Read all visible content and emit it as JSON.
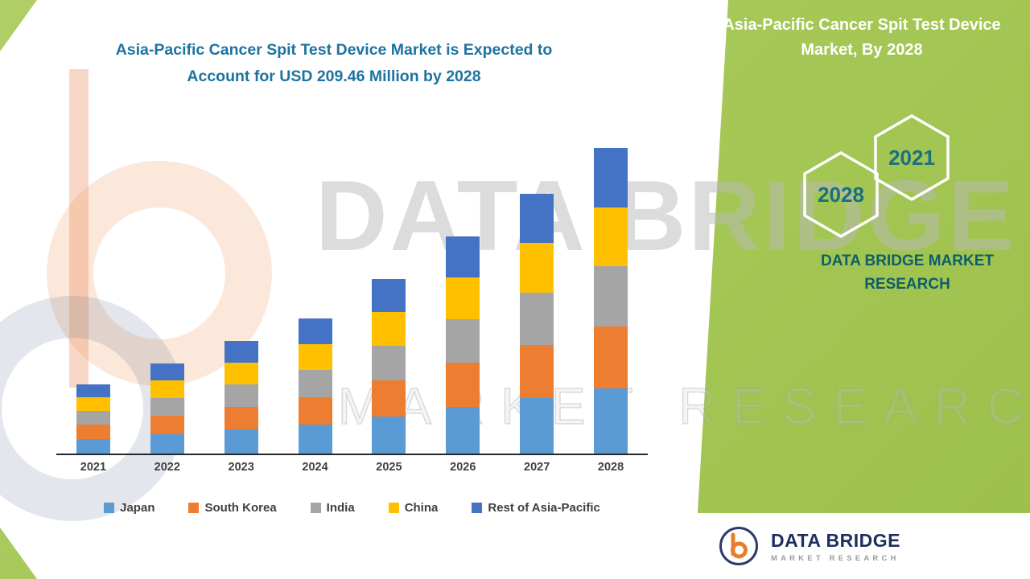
{
  "header": {
    "line1": "Asia-Pacific Cancer Spit Test Device Market is Expected to",
    "line2": "Account for USD 209.46 Million by 2028"
  },
  "right_panel": {
    "title_line1": "Asia-Pacific Cancer Spit Test Device",
    "title_line2": "Market, By 2028",
    "hexagon_back_year": "2021",
    "hexagon_front_year": "2028",
    "brand_line1": "DATA BRIDGE MARKET",
    "brand_line2": "RESEARCH"
  },
  "watermark": {
    "line1": "DATA BRIDGE",
    "line2": "MARKET RESEARCH"
  },
  "logo": {
    "name": "DATA BRIDGE",
    "sub": "MARKET RESEARCH"
  },
  "colors": {
    "green_background": "#a4c654",
    "title_blue": "#1e73a0",
    "brand_teal": "#0d5f68",
    "logo_navy": "#1e2f5c",
    "logo_orange": "#e87e2d"
  },
  "chart_data": {
    "type": "bar",
    "stacked": true,
    "title": "Asia-Pacific Cancer Spit Test Device Market is Expected to Account for USD 209.46 Million by 2028",
    "unit": "USD Million",
    "legend_position": "bottom",
    "categories": [
      "2021",
      "2022",
      "2023",
      "2024",
      "2025",
      "2026",
      "2027",
      "2028"
    ],
    "series": [
      {
        "name": "Japan",
        "color": "#5B9BD5",
        "values": [
          10.2,
          13.2,
          16.4,
          19.8,
          25.6,
          31.9,
          38.3,
          44.6
        ]
      },
      {
        "name": "South Korea",
        "color": "#ED7D31",
        "values": [
          9.8,
          12.7,
          15.8,
          19.0,
          24.4,
          30.4,
          36.4,
          42.4
        ]
      },
      {
        "name": "India",
        "color": "#A5A5A5",
        "values": [
          9.5,
          12.3,
          15.3,
          18.4,
          23.7,
          29.5,
          35.4,
          41.2
        ]
      },
      {
        "name": "China",
        "color": "#FFC000",
        "values": [
          9.3,
          12.0,
          15.0,
          18.0,
          23.2,
          28.9,
          34.6,
          40.3
        ]
      },
      {
        "name": "Rest of Asia-Pacific",
        "color": "#4472C4",
        "values": [
          8.9,
          11.6,
          14.5,
          17.5,
          22.5,
          28.0,
          33.6,
          40.96
        ]
      }
    ],
    "totals": [
      47.7,
      61.8,
      77.0,
      92.7,
      119.4,
      148.7,
      178.3,
      209.46
    ]
  }
}
